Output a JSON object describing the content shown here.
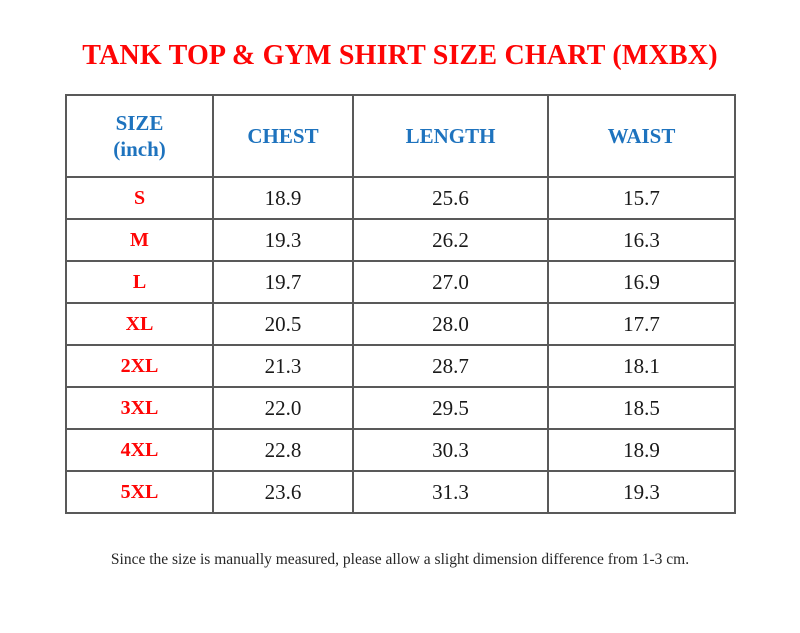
{
  "colors": {
    "title_red": "#fe0505",
    "size_label_red": "#fe0505",
    "header_blue": "#1e73be",
    "value_text": "#1a1a1a",
    "border_gray": "#595959",
    "background": "#ffffff"
  },
  "chart_data": {
    "type": "table",
    "title": "TANK TOP & GYM SHIRT SIZE CHART (MXBX)",
    "units": "inch",
    "columns": [
      "SIZE (inch)",
      "CHEST",
      "LENGTH",
      "WAIST"
    ],
    "header": {
      "col1_line1": "SIZE",
      "col1_line2": "(inch)",
      "col2": "CHEST",
      "col3": "LENGTH",
      "col4": "WAIST"
    },
    "rows": [
      {
        "size": "S",
        "chest": "18.9",
        "length": "25.6",
        "waist": "15.7"
      },
      {
        "size": "M",
        "chest": "19.3",
        "length": "26.2",
        "waist": "16.3"
      },
      {
        "size": "L",
        "chest": "19.7",
        "length": "27.0",
        "waist": "16.9"
      },
      {
        "size": "XL",
        "chest": "20.5",
        "length": "28.0",
        "waist": "17.7"
      },
      {
        "size": "2XL",
        "chest": "21.3",
        "length": "28.7",
        "waist": "18.1"
      },
      {
        "size": "3XL",
        "chest": "22.0",
        "length": "29.5",
        "waist": "18.5"
      },
      {
        "size": "4XL",
        "chest": "22.8",
        "length": "30.3",
        "waist": "18.9"
      },
      {
        "size": "5XL",
        "chest": "23.6",
        "length": "31.3",
        "waist": "19.3"
      }
    ],
    "footnote": "Since the size is manually measured, please allow a slight dimension difference from 1-3 cm."
  }
}
